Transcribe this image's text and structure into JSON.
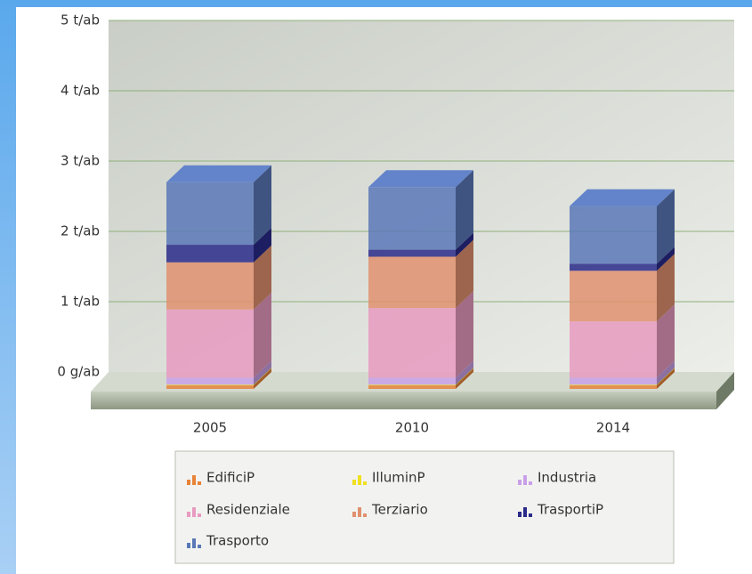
{
  "chart_data": {
    "type": "bar",
    "stacked": true,
    "categories": [
      "2005",
      "2010",
      "2014"
    ],
    "series": [
      {
        "name": "EdificiP",
        "color": "#e8833a",
        "values": [
          0.05,
          0.05,
          0.05
        ]
      },
      {
        "name": "IlluminP",
        "color": "#f0e020",
        "values": [
          0.01,
          0.01,
          0.01
        ]
      },
      {
        "name": "Industria",
        "color": "#c9a0e8",
        "values": [
          0.1,
          0.1,
          0.1
        ]
      },
      {
        "name": "Residenziale",
        "color": "#e89ac0",
        "values": [
          0.97,
          0.99,
          0.8
        ]
      },
      {
        "name": "Terziario",
        "color": "#e0906e",
        "values": [
          0.67,
          0.73,
          0.72
        ]
      },
      {
        "name": "TrasportiP",
        "color": "#2a2a8a",
        "values": [
          0.25,
          0.1,
          0.1
        ]
      },
      {
        "name": "Trasporto",
        "color": "#5a78b8",
        "values": [
          0.89,
          0.89,
          0.82
        ]
      }
    ],
    "ylim": [
      0,
      5
    ],
    "yticks": [
      {
        "value": 0,
        "label": "0 g/ab"
      },
      {
        "value": 1,
        "label": "1 t/ab"
      },
      {
        "value": 2,
        "label": "2 t/ab"
      },
      {
        "value": 3,
        "label": "3 t/ab"
      },
      {
        "value": 4,
        "label": "4 t/ab"
      },
      {
        "value": 5,
        "label": "5 t/ab"
      }
    ],
    "grid": true,
    "legend": "bottom"
  }
}
